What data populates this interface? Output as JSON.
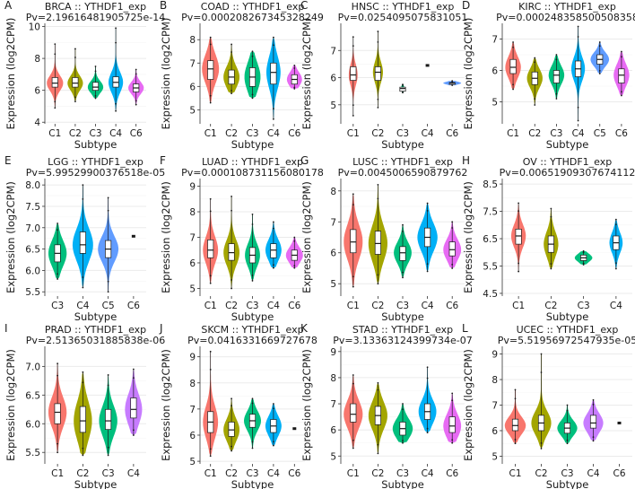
{
  "figure": {
    "panel_letters": [
      "A",
      "B",
      "C",
      "D",
      "E",
      "F",
      "G",
      "H",
      "I",
      "J",
      "K",
      "L"
    ],
    "palette": {
      "C1": "#F8766D",
      "C2": "#A3A500",
      "C3": "#00BF7D",
      "C4": "#00B0F6",
      "C5": "#6495ED",
      "C6": "#E76BF3"
    },
    "panel_palettes": {
      "C": {
        "C6": "#619CFF"
      },
      "D": {
        "C5": "#619CFF"
      },
      "E": {
        "C5": "#619CFF"
      },
      "I": {
        "C4": "#C77CFF"
      },
      "L": {
        "C4": "#C77CFF"
      }
    }
  },
  "chart_data": [
    {
      "type": "violin",
      "panel": "A",
      "title": "BRCA :: YTHDF1_exp",
      "pvalue": "Pv=2.19616481905725e-14",
      "xlabel": "Subtype",
      "ylabel": "Expression (log2CPM)",
      "ylim": [
        3.9,
        10.2
      ],
      "yticks": [
        4,
        6,
        8,
        10
      ],
      "categories": [
        "C1",
        "C2",
        "C3",
        "C4",
        "C6"
      ],
      "series": [
        {
          "name": "C1",
          "min": 4.9,
          "q1": 6.2,
          "median": 6.45,
          "q3": 6.8,
          "max": 8.9,
          "width": 0.9
        },
        {
          "name": "C2",
          "min": 5.3,
          "q1": 6.2,
          "median": 6.45,
          "q3": 6.8,
          "max": 8.6,
          "width": 0.85
        },
        {
          "name": "C3",
          "min": 5.5,
          "q1": 6.0,
          "median": 6.2,
          "q3": 6.5,
          "max": 7.5,
          "width": 0.85
        },
        {
          "name": "C4",
          "min": 4.7,
          "q1": 6.2,
          "median": 6.5,
          "q3": 6.85,
          "max": 9.9,
          "width": 0.8
        },
        {
          "name": "C6",
          "min": 5.1,
          "q1": 5.9,
          "median": 6.15,
          "q3": 6.4,
          "max": 7.3,
          "width": 0.85
        }
      ]
    },
    {
      "type": "violin",
      "panel": "B",
      "title": "COAD :: YTHDF1_exp",
      "pvalue": "Pv=0.000208267345328249",
      "xlabel": "Subtype",
      "ylabel": "Expression (log2CPM)",
      "ylim": [
        4.4,
        8.7
      ],
      "yticks": [
        5,
        6,
        7,
        8
      ],
      "categories": [
        "C1",
        "C2",
        "C3",
        "C4",
        "C6"
      ],
      "series": [
        {
          "name": "C1",
          "min": 5.3,
          "q1": 6.3,
          "median": 6.75,
          "q3": 7.1,
          "max": 8.1,
          "width": 0.9
        },
        {
          "name": "C2",
          "min": 5.7,
          "q1": 6.1,
          "median": 6.4,
          "q3": 6.7,
          "max": 7.8,
          "width": 0.85
        },
        {
          "name": "C3",
          "min": 5.5,
          "q1": 6.0,
          "median": 6.4,
          "q3": 6.8,
          "max": 7.5,
          "width": 0.85
        },
        {
          "name": "C4",
          "min": 4.6,
          "q1": 6.1,
          "median": 6.6,
          "q3": 7.0,
          "max": 8.1,
          "width": 0.75
        },
        {
          "name": "C6",
          "min": 5.9,
          "q1": 6.1,
          "median": 6.3,
          "q3": 6.5,
          "max": 6.9,
          "width": 0.8
        }
      ]
    },
    {
      "type": "violin",
      "panel": "C",
      "title": "HNSC :: YTHDF1_exp",
      "pvalue": "Pv=0.0254095075831051",
      "xlabel": "Subtype",
      "ylabel": "",
      "ylim": [
        4.3,
        8.0
      ],
      "yticks": [
        5,
        6,
        7
      ],
      "categories": [
        "C1",
        "C2",
        "C3",
        "C4",
        "C6"
      ],
      "series": [
        {
          "name": "C1",
          "min": 4.6,
          "q1": 5.9,
          "median": 6.1,
          "q3": 6.4,
          "max": 7.5,
          "width": 0.4
        },
        {
          "name": "C2",
          "min": 4.9,
          "q1": 5.9,
          "median": 6.2,
          "q3": 6.4,
          "max": 7.7,
          "width": 0.45
        },
        {
          "name": "C3",
          "min": 5.45,
          "q1": 5.5,
          "median": 5.6,
          "q3": 5.65,
          "max": 5.75,
          "width": 0.15
        },
        {
          "name": "C4",
          "min": 6.45,
          "q1": 6.45,
          "median": 6.45,
          "q3": 6.45,
          "max": 6.45,
          "width": 0
        },
        {
          "name": "C6",
          "min": 5.72,
          "q1": 5.75,
          "median": 5.8,
          "q3": 5.82,
          "max": 5.88,
          "width": 0.8
        }
      ]
    },
    {
      "type": "violin",
      "panel": "D",
      "title": "KIRC :: YTHDF1_exp",
      "pvalue": "Pv=0.000248358500508358",
      "xlabel": "",
      "ylabel": "",
      "ylim": [
        4.3,
        7.5
      ],
      "yticks": [
        5,
        6,
        7
      ],
      "categories": [
        "C1",
        "C2",
        "C3",
        "C4",
        "C5",
        "C6"
      ],
      "series": [
        {
          "name": "C1",
          "min": 5.4,
          "q1": 5.9,
          "median": 6.1,
          "q3": 6.35,
          "max": 6.9,
          "width": 0.8
        },
        {
          "name": "C2",
          "min": 4.9,
          "q1": 5.55,
          "median": 5.75,
          "q3": 5.95,
          "max": 6.4,
          "width": 0.8
        },
        {
          "name": "C3",
          "min": 5.1,
          "q1": 5.6,
          "median": 5.85,
          "q3": 6.0,
          "max": 6.5,
          "width": 0.8
        },
        {
          "name": "C4",
          "min": 4.4,
          "q1": 5.8,
          "median": 6.05,
          "q3": 6.3,
          "max": 7.4,
          "width": 0.7
        },
        {
          "name": "C5",
          "min": 5.9,
          "q1": 6.2,
          "median": 6.35,
          "q3": 6.5,
          "max": 6.9,
          "width": 0.95
        },
        {
          "name": "C6",
          "min": 5.2,
          "q1": 5.6,
          "median": 5.85,
          "q3": 6.05,
          "max": 6.6,
          "width": 0.8
        }
      ]
    },
    {
      "type": "violin",
      "panel": "E",
      "title": "LGG :: YTHDF1_exp",
      "pvalue": "Pv=5.99529900376518e-05",
      "xlabel": "Subtype",
      "ylabel": "Expression (log2CPM)",
      "ylim": [
        5.4,
        8.15
      ],
      "yticks": [
        5.5,
        6.0,
        6.5,
        7.0,
        7.5,
        8.0
      ],
      "categories": [
        "C3",
        "C4",
        "C5",
        "C6"
      ],
      "series": [
        {
          "name": "C3",
          "min": 5.8,
          "q1": 6.2,
          "median": 6.4,
          "q3": 6.6,
          "max": 7.1,
          "width": 0.8
        },
        {
          "name": "C4",
          "min": 5.6,
          "q1": 6.4,
          "median": 6.6,
          "q3": 6.9,
          "max": 8.0,
          "width": 0.9
        },
        {
          "name": "C5",
          "min": 5.5,
          "q1": 6.3,
          "median": 6.5,
          "q3": 6.7,
          "max": 7.7,
          "width": 0.9
        },
        {
          "name": "C6",
          "min": 6.8,
          "q1": 6.8,
          "median": 6.8,
          "q3": 6.8,
          "max": 6.8,
          "width": 0
        }
      ]
    },
    {
      "type": "violin",
      "panel": "F",
      "title": "LUAD :: YTHDF1_exp",
      "pvalue": "Pv=0.000108731156080178",
      "xlabel": "",
      "ylabel": "",
      "ylim": [
        4.7,
        9.3
      ],
      "yticks": [
        5,
        6,
        7,
        8,
        9
      ],
      "categories": [
        "C1",
        "C2",
        "C3",
        "C4",
        "C6"
      ],
      "series": [
        {
          "name": "C1",
          "min": 5.2,
          "q1": 6.2,
          "median": 6.5,
          "q3": 6.9,
          "max": 8.5,
          "width": 0.8
        },
        {
          "name": "C2",
          "min": 5.0,
          "q1": 6.1,
          "median": 6.4,
          "q3": 6.75,
          "max": 8.6,
          "width": 0.85
        },
        {
          "name": "C3",
          "min": 5.3,
          "q1": 6.0,
          "median": 6.3,
          "q3": 6.6,
          "max": 7.9,
          "width": 0.8
        },
        {
          "name": "C4",
          "min": 5.8,
          "q1": 6.2,
          "median": 6.5,
          "q3": 6.75,
          "max": 7.6,
          "width": 0.85
        },
        {
          "name": "C6",
          "min": 5.8,
          "q1": 6.1,
          "median": 6.3,
          "q3": 6.5,
          "max": 7.0,
          "width": 0.9
        }
      ]
    },
    {
      "type": "violin",
      "panel": "G",
      "title": "LUSC :: YTHDF1_exp",
      "pvalue": "Pv=0.0045006590879762",
      "xlabel": "",
      "ylabel": "",
      "ylim": [
        4.6,
        8.4
      ],
      "yticks": [
        5,
        6,
        7,
        8
      ],
      "categories": [
        "C1",
        "C2",
        "C3",
        "C4",
        "C6"
      ],
      "series": [
        {
          "name": "C1",
          "min": 4.9,
          "q1": 6.0,
          "median": 6.35,
          "q3": 6.75,
          "max": 7.9,
          "width": 0.85
        },
        {
          "name": "C2",
          "min": 5.0,
          "q1": 5.95,
          "median": 6.3,
          "q3": 6.7,
          "max": 8.2,
          "width": 0.85
        },
        {
          "name": "C3",
          "min": 5.2,
          "q1": 5.75,
          "median": 6.0,
          "q3": 6.2,
          "max": 6.9,
          "width": 0.8
        },
        {
          "name": "C4",
          "min": 5.4,
          "q1": 6.2,
          "median": 6.5,
          "q3": 6.8,
          "max": 7.6,
          "width": 0.9
        },
        {
          "name": "C6",
          "min": 5.5,
          "q1": 5.9,
          "median": 6.1,
          "q3": 6.35,
          "max": 7.0,
          "width": 0.8
        }
      ]
    },
    {
      "type": "violin",
      "panel": "H",
      "title": "OV :: YTHDF1_exp",
      "pvalue": "Pv=0.00651909307674112",
      "xlabel": "Subtype",
      "ylabel": "",
      "ylim": [
        4.4,
        8.7
      ],
      "yticks": [
        4.5,
        5.5,
        6.5,
        7.5,
        8.5
      ],
      "categories": [
        "C1",
        "C2",
        "C3",
        "C4"
      ],
      "series": [
        {
          "name": "C1",
          "min": 5.3,
          "q1": 6.3,
          "median": 6.6,
          "q3": 6.85,
          "max": 7.8,
          "width": 0.5
        },
        {
          "name": "C2",
          "min": 5.4,
          "q1": 6.0,
          "median": 6.3,
          "q3": 6.6,
          "max": 7.6,
          "width": 0.5
        },
        {
          "name": "C3",
          "min": 5.55,
          "q1": 5.7,
          "median": 5.8,
          "q3": 5.9,
          "max": 6.05,
          "width": 0.6
        },
        {
          "name": "C4",
          "min": 5.4,
          "q1": 6.1,
          "median": 6.35,
          "q3": 6.6,
          "max": 7.2,
          "width": 0.45
        }
      ]
    },
    {
      "type": "violin",
      "panel": "I",
      "title": "PRAD :: YTHDF1_exp",
      "pvalue": "Pv=2.51365031885838e-06",
      "xlabel": "Subtype",
      "ylabel": "Expression (log2CPM)",
      "ylim": [
        5.3,
        7.35
      ],
      "yticks": [
        5.5,
        6.0,
        6.5,
        7.0
      ],
      "categories": [
        "C1",
        "C2",
        "C3",
        "C4"
      ],
      "series": [
        {
          "name": "C1",
          "min": 5.5,
          "q1": 6.0,
          "median": 6.2,
          "q3": 6.35,
          "max": 7.05,
          "width": 0.8
        },
        {
          "name": "C2",
          "min": 5.45,
          "q1": 5.85,
          "median": 6.05,
          "q3": 6.3,
          "max": 6.9,
          "width": 0.8
        },
        {
          "name": "C3",
          "min": 5.45,
          "q1": 5.9,
          "median": 6.05,
          "q3": 6.25,
          "max": 6.85,
          "width": 0.8
        },
        {
          "name": "C4",
          "min": 5.8,
          "q1": 6.1,
          "median": 6.25,
          "q3": 6.45,
          "max": 6.95,
          "width": 0.75
        }
      ]
    },
    {
      "type": "violin",
      "panel": "J",
      "title": "SKCM :: YTHDF1_exp",
      "pvalue": "Pv=0.0416331669727678",
      "xlabel": "",
      "ylabel": "",
      "ylim": [
        4.9,
        9.4
      ],
      "yticks": [
        5,
        6,
        7,
        8,
        9
      ],
      "categories": [
        "C1",
        "C2",
        "C3",
        "C4",
        "C6"
      ],
      "series": [
        {
          "name": "C1",
          "min": 5.2,
          "q1": 6.1,
          "median": 6.5,
          "q3": 6.9,
          "max": 9.2,
          "width": 0.8
        },
        {
          "name": "C2",
          "min": 5.4,
          "q1": 5.95,
          "median": 6.2,
          "q3": 6.5,
          "max": 7.4,
          "width": 0.85
        },
        {
          "name": "C3",
          "min": 5.5,
          "q1": 6.3,
          "median": 6.55,
          "q3": 6.8,
          "max": 7.4,
          "width": 0.9
        },
        {
          "name": "C4",
          "min": 5.6,
          "q1": 6.1,
          "median": 6.35,
          "q3": 6.6,
          "max": 7.2,
          "width": 0.85
        },
        {
          "name": "C6",
          "min": 6.25,
          "q1": 6.25,
          "median": 6.25,
          "q3": 6.25,
          "max": 6.25,
          "width": 0
        }
      ]
    },
    {
      "type": "violin",
      "panel": "K",
      "title": "STAD :: YTHDF1_exp",
      "pvalue": "Pv=3.13363124399734e-07",
      "xlabel": "",
      "ylabel": "",
      "ylim": [
        4.7,
        9.2
      ],
      "yticks": [
        5,
        6,
        7,
        8,
        9
      ],
      "categories": [
        "C1",
        "C2",
        "C3",
        "C4",
        "C6"
      ],
      "series": [
        {
          "name": "C1",
          "min": 5.3,
          "q1": 6.3,
          "median": 6.6,
          "q3": 7.0,
          "max": 8.1,
          "width": 0.85
        },
        {
          "name": "C2",
          "min": 5.1,
          "q1": 6.2,
          "median": 6.55,
          "q3": 6.9,
          "max": 7.8,
          "width": 0.85
        },
        {
          "name": "C3",
          "min": 5.5,
          "q1": 5.8,
          "median": 6.05,
          "q3": 6.3,
          "max": 7.0,
          "width": 0.9
        },
        {
          "name": "C4",
          "min": 5.9,
          "q1": 6.4,
          "median": 6.7,
          "q3": 7.0,
          "max": 8.4,
          "width": 0.8
        },
        {
          "name": "C6",
          "min": 5.5,
          "q1": 5.9,
          "median": 6.15,
          "q3": 6.5,
          "max": 7.4,
          "width": 0.8
        }
      ]
    },
    {
      "type": "violin",
      "panel": "L",
      "title": "UCEC :: YTHDF1_exp",
      "pvalue": "Pv=5.51956972547935e-05",
      "xlabel": "Subtype",
      "ylabel": "",
      "ylim": [
        4.7,
        9.3
      ],
      "yticks": [
        5,
        6,
        7,
        8,
        9
      ],
      "categories": [
        "C1",
        "C2",
        "C3",
        "C4",
        "C6"
      ],
      "series": [
        {
          "name": "C1",
          "min": 5.5,
          "q1": 6.0,
          "median": 6.2,
          "q3": 6.45,
          "max": 7.6,
          "width": 0.9
        },
        {
          "name": "C2",
          "min": 5.3,
          "q1": 6.0,
          "median": 6.3,
          "q3": 6.6,
          "max": 9.0,
          "width": 0.85
        },
        {
          "name": "C3",
          "min": 5.5,
          "q1": 5.9,
          "median": 6.1,
          "q3": 6.3,
          "max": 7.0,
          "width": 0.85
        },
        {
          "name": "C4",
          "min": 5.6,
          "q1": 6.1,
          "median": 6.3,
          "q3": 6.6,
          "max": 7.2,
          "width": 0.85
        },
        {
          "name": "C6",
          "min": 6.3,
          "q1": 6.3,
          "median": 6.3,
          "q3": 6.3,
          "max": 6.3,
          "width": 0
        }
      ]
    }
  ]
}
